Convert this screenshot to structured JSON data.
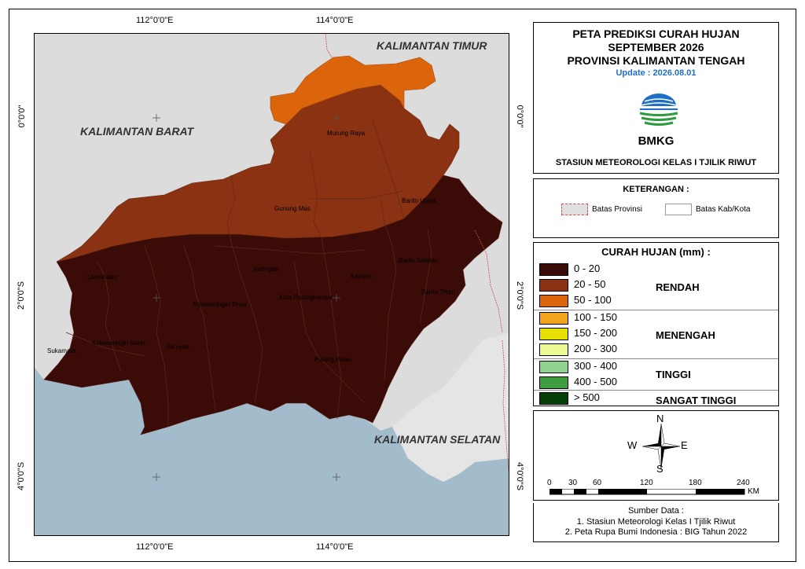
{
  "title": {
    "line1": "PETA PREDIKSI CURAH HUJAN",
    "line2": "SEPTEMBER 2026",
    "line3": "PROVINSI KALIMANTAN TENGAH",
    "update": "Update : 2026.08.01",
    "logo_text": "BMKG",
    "station": "STASIUN METEOROLOGI KELAS I TJILIK RIWUT"
  },
  "coordinates": {
    "top": [
      "112°0'0\"E",
      "114°0'0\"E"
    ],
    "bottom": [
      "112°0'0\"E",
      "114°0'0\"E"
    ],
    "left": [
      "0°0'0\"",
      "2°0'0\"S",
      "4°0'0\"S"
    ],
    "right": [
      "0°0'0\"",
      "2°0'0\"S",
      "4°0'0\"S"
    ]
  },
  "map": {
    "neighbors": {
      "barat": "KALIMANTAN BARAT",
      "timur": "KALIMANTAN TIMUR",
      "selatan": "KALIMANTAN SELATAN"
    },
    "regencies": {
      "murung_raya": "Murung Raya",
      "gunung_mas": "Gunung Mas",
      "barito_utara": "Barito Utara",
      "lamandau": "Lamandau",
      "katingan": "Katingan",
      "barito_selatan": "Barito Selatan",
      "kapuas": "Kapuas",
      "kotawaringin_timur": "Kotawaringin Timur",
      "kota_palangka_raya": "Kota Palangkaraya",
      "barito_timur": "Barito Timur",
      "sukamara": "Sukamara",
      "kotawaringin_barat": "Kotawaringin Barat",
      "seruyan": "Seruyan",
      "pulang_pisau": "Pulang Pisau"
    },
    "colors": {
      "outside": "#dcdcdc",
      "sea": "#a3bccc",
      "rain_0_20": "#3a0b07",
      "rain_20_50": "#8b3212",
      "rain_50_100": "#dc650c"
    }
  },
  "keterangan": {
    "heading": "KETERANGAN :",
    "batas_provinsi": "Batas Provinsi",
    "batas_kab": "Batas Kab/Kota"
  },
  "legend": {
    "heading": "CURAH HUJAN (mm) :",
    "classes": [
      {
        "label": "0 - 20",
        "color": "#3a0b07"
      },
      {
        "label": "20 - 50",
        "color": "#8b3212"
      },
      {
        "label": "50 - 100",
        "color": "#dc650c"
      },
      {
        "label": "100 - 150",
        "color": "#f1a51f"
      },
      {
        "label": "150  - 200",
        "color": "#e8e000"
      },
      {
        "label": "200 - 300",
        "color": "#eefb95"
      },
      {
        "label": "300 - 400",
        "color": "#8fd38e"
      },
      {
        "label": "400 - 500",
        "color": "#3e9e3e"
      },
      {
        "label": "> 500",
        "color": "#063f06"
      }
    ],
    "categories": {
      "rendah": "RENDAH",
      "menengah": "MENENGAH",
      "tinggi": "TINGGI",
      "sangat_tinggi": "SANGAT TINGGI"
    }
  },
  "compass": {
    "n": "N",
    "s": "S",
    "e": "E",
    "w": "W"
  },
  "scale": {
    "ticks": [
      "0",
      "30",
      "60",
      "120",
      "180",
      "240"
    ],
    "unit": "KM"
  },
  "sumber": {
    "heading": "Sumber Data :",
    "line1": "1. Stasiun Meteorologi Kelas I Tjilik Riwut",
    "line2": "2. Peta Rupa Bumi Indonesia : BIG Tahun 2022"
  }
}
